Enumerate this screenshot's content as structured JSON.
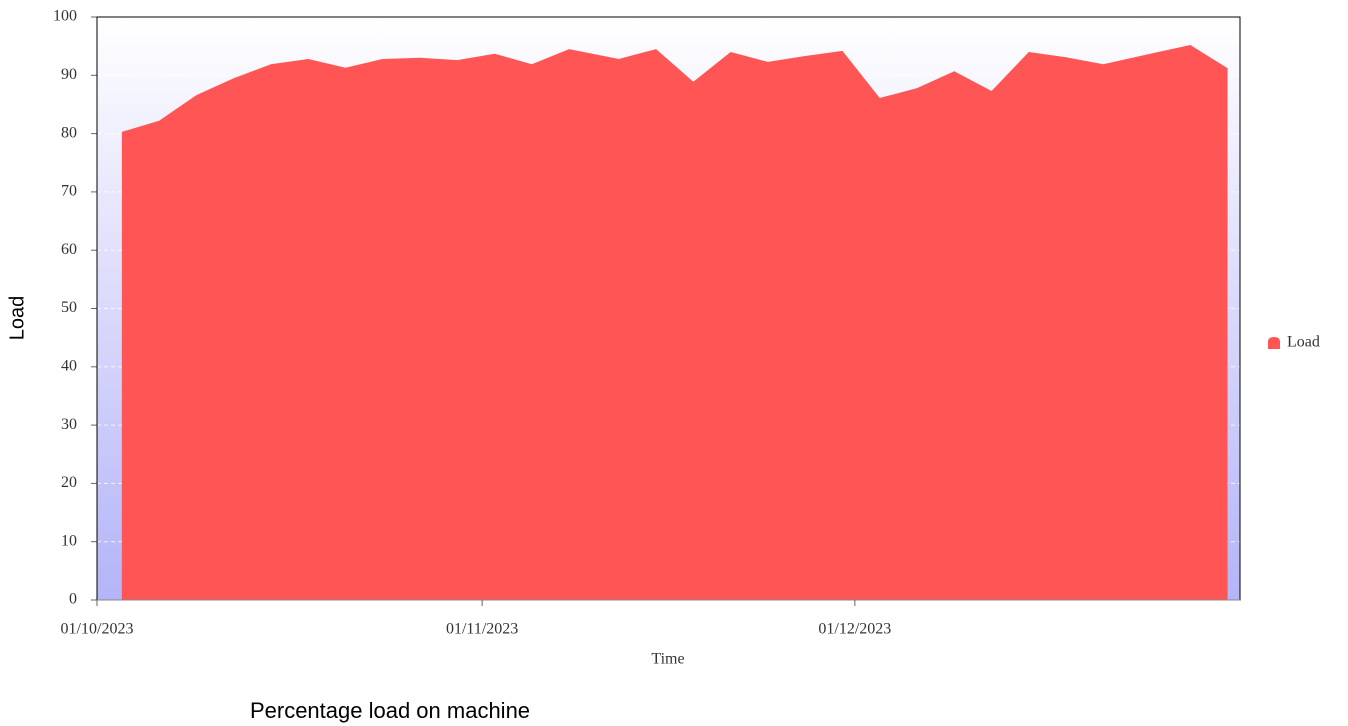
{
  "chart_data": {
    "type": "area",
    "title": "Percentage load on machine",
    "xlabel": "Time",
    "ylabel": "Load",
    "x": [
      "2023-10-03",
      "2023-10-06",
      "2023-10-09",
      "2023-10-12",
      "2023-10-15",
      "2023-10-18",
      "2023-10-21",
      "2023-10-24",
      "2023-10-27",
      "2023-10-30",
      "2023-11-02",
      "2023-11-05",
      "2023-11-08",
      "2023-11-12",
      "2023-11-15",
      "2023-11-18",
      "2023-11-21",
      "2023-11-24",
      "2023-11-27",
      "2023-11-30",
      "2023-12-03",
      "2023-12-06",
      "2023-12-09",
      "2023-12-12",
      "2023-12-15",
      "2023-12-18",
      "2023-12-21",
      "2023-12-25",
      "2023-12-28",
      "2023-12-31"
    ],
    "series": [
      {
        "name": "Load",
        "color": "#ff5555",
        "values": [
          80.3,
          82.2,
          86.6,
          89.5,
          91.9,
          92.8,
          91.3,
          92.8,
          93.0,
          92.6,
          93.7,
          91.9,
          94.5,
          92.8,
          94.5,
          88.9,
          94.0,
          92.3,
          93.3,
          94.2,
          86.1,
          87.8,
          90.7,
          87.3,
          94.0,
          93.1,
          91.9,
          93.8,
          95.2,
          91.2
        ]
      }
    ],
    "xlim": [
      "2023-10-01",
      "2024-01-01"
    ],
    "xticks": [
      {
        "value": "2023-10-01",
        "label": "01/10/2023"
      },
      {
        "value": "2023-11-01",
        "label": "01/11/2023"
      },
      {
        "value": "2023-12-01",
        "label": "01/12/2023"
      }
    ],
    "ylim": [
      0,
      100
    ],
    "yticks": [
      0,
      10,
      20,
      30,
      40,
      50,
      60,
      70,
      80,
      90,
      100
    ],
    "grid": true,
    "legend": "right"
  }
}
